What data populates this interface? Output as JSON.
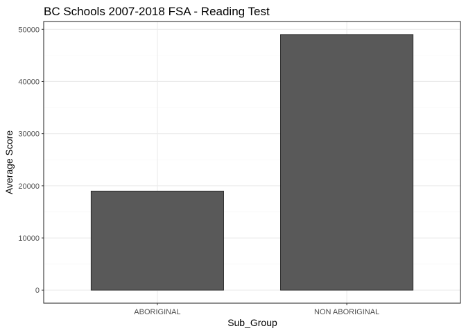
{
  "chart_data": {
    "type": "bar",
    "title": "BC Schools 2007-2018 FSA - Reading Test",
    "xlabel": "Sub_Group",
    "ylabel": "Average Score",
    "categories": [
      "ABORIGINAL",
      "NON ABORIGINAL"
    ],
    "values": [
      19000,
      49000
    ],
    "ylim": [
      -2500,
      51500
    ],
    "yticks": [
      0,
      10000,
      20000,
      30000,
      40000,
      50000
    ],
    "ytick_labels": [
      "0",
      "10000",
      "20000",
      "30000",
      "40000",
      "50000"
    ],
    "grid": true,
    "legend": "none",
    "colors": {
      "bar_fill": "#595959",
      "bar_stroke": "#1a1a1a",
      "grid_major": "#ebebeb",
      "grid_minor": "#f5f5f5",
      "panel_border": "#333333"
    }
  }
}
